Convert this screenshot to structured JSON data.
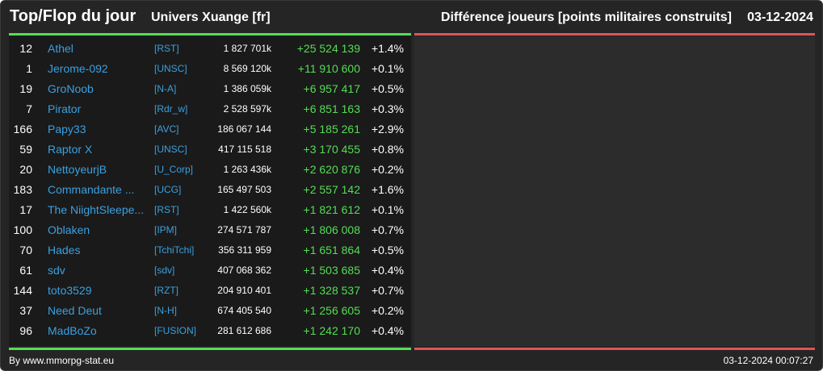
{
  "header": {
    "title": "Top/Flop du jour",
    "universe": "Univers Xuange [fr]",
    "metric": "Différence joueurs [points militaires construits]",
    "date": "03-12-2024"
  },
  "rows": [
    {
      "rank": "12",
      "name": "Athel",
      "alliance": "[RST]",
      "points": "1 827 701k",
      "diff": "+25 524 139",
      "pct": "+1.4%"
    },
    {
      "rank": "1",
      "name": "Jerome-092",
      "alliance": "[UNSC]",
      "points": "8 569 120k",
      "diff": "+11 910 600",
      "pct": "+0.1%"
    },
    {
      "rank": "19",
      "name": "GroNoob",
      "alliance": "[N-A]",
      "points": "1 386 059k",
      "diff": "+6 957 417",
      "pct": "+0.5%"
    },
    {
      "rank": "7",
      "name": "Pirator",
      "alliance": "[Rdr_w]",
      "points": "2 528 597k",
      "diff": "+6 851 163",
      "pct": "+0.3%"
    },
    {
      "rank": "166",
      "name": "Papy33",
      "alliance": "[AVC]",
      "points": "186 067 144",
      "diff": "+5 185 261",
      "pct": "+2.9%"
    },
    {
      "rank": "59",
      "name": "Raptor X",
      "alliance": "[UNSC]",
      "points": "417 115 518",
      "diff": "+3 170 455",
      "pct": "+0.8%"
    },
    {
      "rank": "20",
      "name": "NettoyeurjB",
      "alliance": "[U_Corp]",
      "points": "1 263 436k",
      "diff": "+2 620 876",
      "pct": "+0.2%"
    },
    {
      "rank": "183",
      "name": "Commandante ...",
      "alliance": "[UCG]",
      "points": "165 497 503",
      "diff": "+2 557 142",
      "pct": "+1.6%"
    },
    {
      "rank": "17",
      "name": "The NiightSleepe...",
      "alliance": "[RST]",
      "points": "1 422 560k",
      "diff": "+1 821 612",
      "pct": "+0.1%"
    },
    {
      "rank": "100",
      "name": "Oblaken",
      "alliance": "[IPM]",
      "points": "274 571 787",
      "diff": "+1 806 008",
      "pct": "+0.7%"
    },
    {
      "rank": "70",
      "name": "Hades",
      "alliance": "[TchiTchi]",
      "points": "356 311 959",
      "diff": "+1 651 864",
      "pct": "+0.5%"
    },
    {
      "rank": "61",
      "name": "sdv",
      "alliance": "[sdv]",
      "points": "407 068 362",
      "diff": "+1 503 685",
      "pct": "+0.4%"
    },
    {
      "rank": "144",
      "name": "toto3529",
      "alliance": "[RZT]",
      "points": "204 910 401",
      "diff": "+1 328 537",
      "pct": "+0.7%"
    },
    {
      "rank": "37",
      "name": "Need Deut",
      "alliance": "[N-H]",
      "points": "674 405 540",
      "diff": "+1 256 605",
      "pct": "+0.2%"
    },
    {
      "rank": "96",
      "name": "MadBoZo",
      "alliance": "[FUSION]",
      "points": "281 612 686",
      "diff": "+1 242 170",
      "pct": "+0.4%"
    }
  ],
  "footer": {
    "source": "By www.mmorpg-stat.eu",
    "timestamp": "03-12-2024 00:07:27"
  },
  "colors": {
    "top_line": "#55dd55",
    "flop_line": "#dd5555",
    "link": "#3aa0e0",
    "positive": "#55dd55"
  }
}
